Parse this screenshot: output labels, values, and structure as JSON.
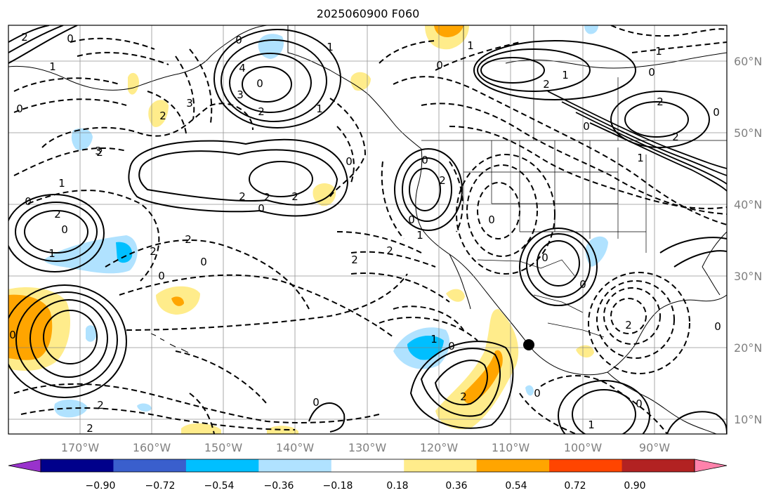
{
  "title": "2025060900 F060",
  "lat_labels": [
    "60°N",
    "50°N",
    "40°N",
    "30°N",
    "20°N",
    "10°N"
  ],
  "lon_labels": [
    "170°W",
    "160°W",
    "150°W",
    "140°W",
    "130°W",
    "120°W",
    "110°W",
    "100°W",
    "90°W"
  ],
  "colorbar": {
    "colors": [
      "#9932cc",
      "#00008b",
      "#3a5fcd",
      "#00bfff",
      "#b0e2ff",
      "#ffffff",
      "#ffec8b",
      "#ffa500",
      "#ff4500",
      "#b22222",
      "#ff82ab"
    ],
    "tick_labels": [
      "−0.90",
      "−0.72",
      "−0.54",
      "−0.36",
      "−0.18",
      "0.18",
      "0.36",
      "0.54",
      "0.72",
      "0.90"
    ]
  },
  "contour_labels": [
    "2",
    "0",
    "0",
    "1",
    "0",
    "1",
    "0",
    "2",
    "2",
    "1",
    "2",
    "3",
    "2",
    "0",
    "4",
    "3",
    "2",
    "1",
    "0",
    "1",
    "2",
    "2",
    "0",
    "2",
    "0",
    "0",
    "0",
    "2",
    "3",
    "2",
    "0",
    "0",
    "1",
    "0",
    "1",
    "0",
    "2",
    "2",
    "2",
    "0",
    "0",
    "0",
    "1",
    "2",
    "0",
    "0",
    "0",
    "2",
    "0",
    "1",
    "2",
    "1",
    "0",
    "1",
    "0",
    "0",
    "1",
    "2",
    "0",
    "2",
    "2"
  ],
  "marker": "20N 107W"
}
